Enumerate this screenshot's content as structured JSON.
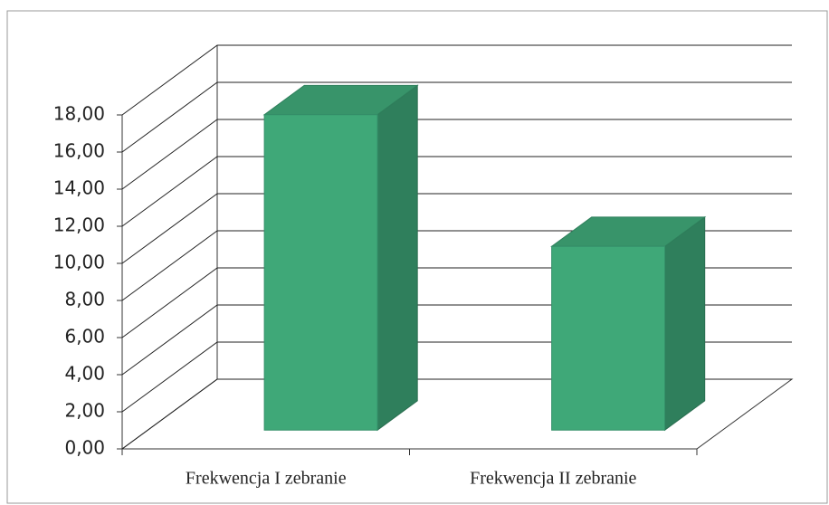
{
  "chart_data": {
    "type": "bar3d",
    "categories": [
      "Frekwencja I zebranie",
      "Frekwencja II zebranie"
    ],
    "values": [
      17.0,
      9.9
    ],
    "color": "#3fa878",
    "ylim": [
      0,
      18
    ],
    "yticks": [
      {
        "value": 0,
        "label": "0,00"
      },
      {
        "value": 2,
        "label": "2,00"
      },
      {
        "value": 4,
        "label": "4,00"
      },
      {
        "value": 6,
        "label": "6,00"
      },
      {
        "value": 8,
        "label": "8,00"
      },
      {
        "value": 10,
        "label": "10,00"
      },
      {
        "value": 12,
        "label": "12,00"
      },
      {
        "value": 14,
        "label": "14,00"
      },
      {
        "value": 16,
        "label": "16,00"
      },
      {
        "value": 18,
        "label": "18,00"
      }
    ],
    "grid": true
  }
}
